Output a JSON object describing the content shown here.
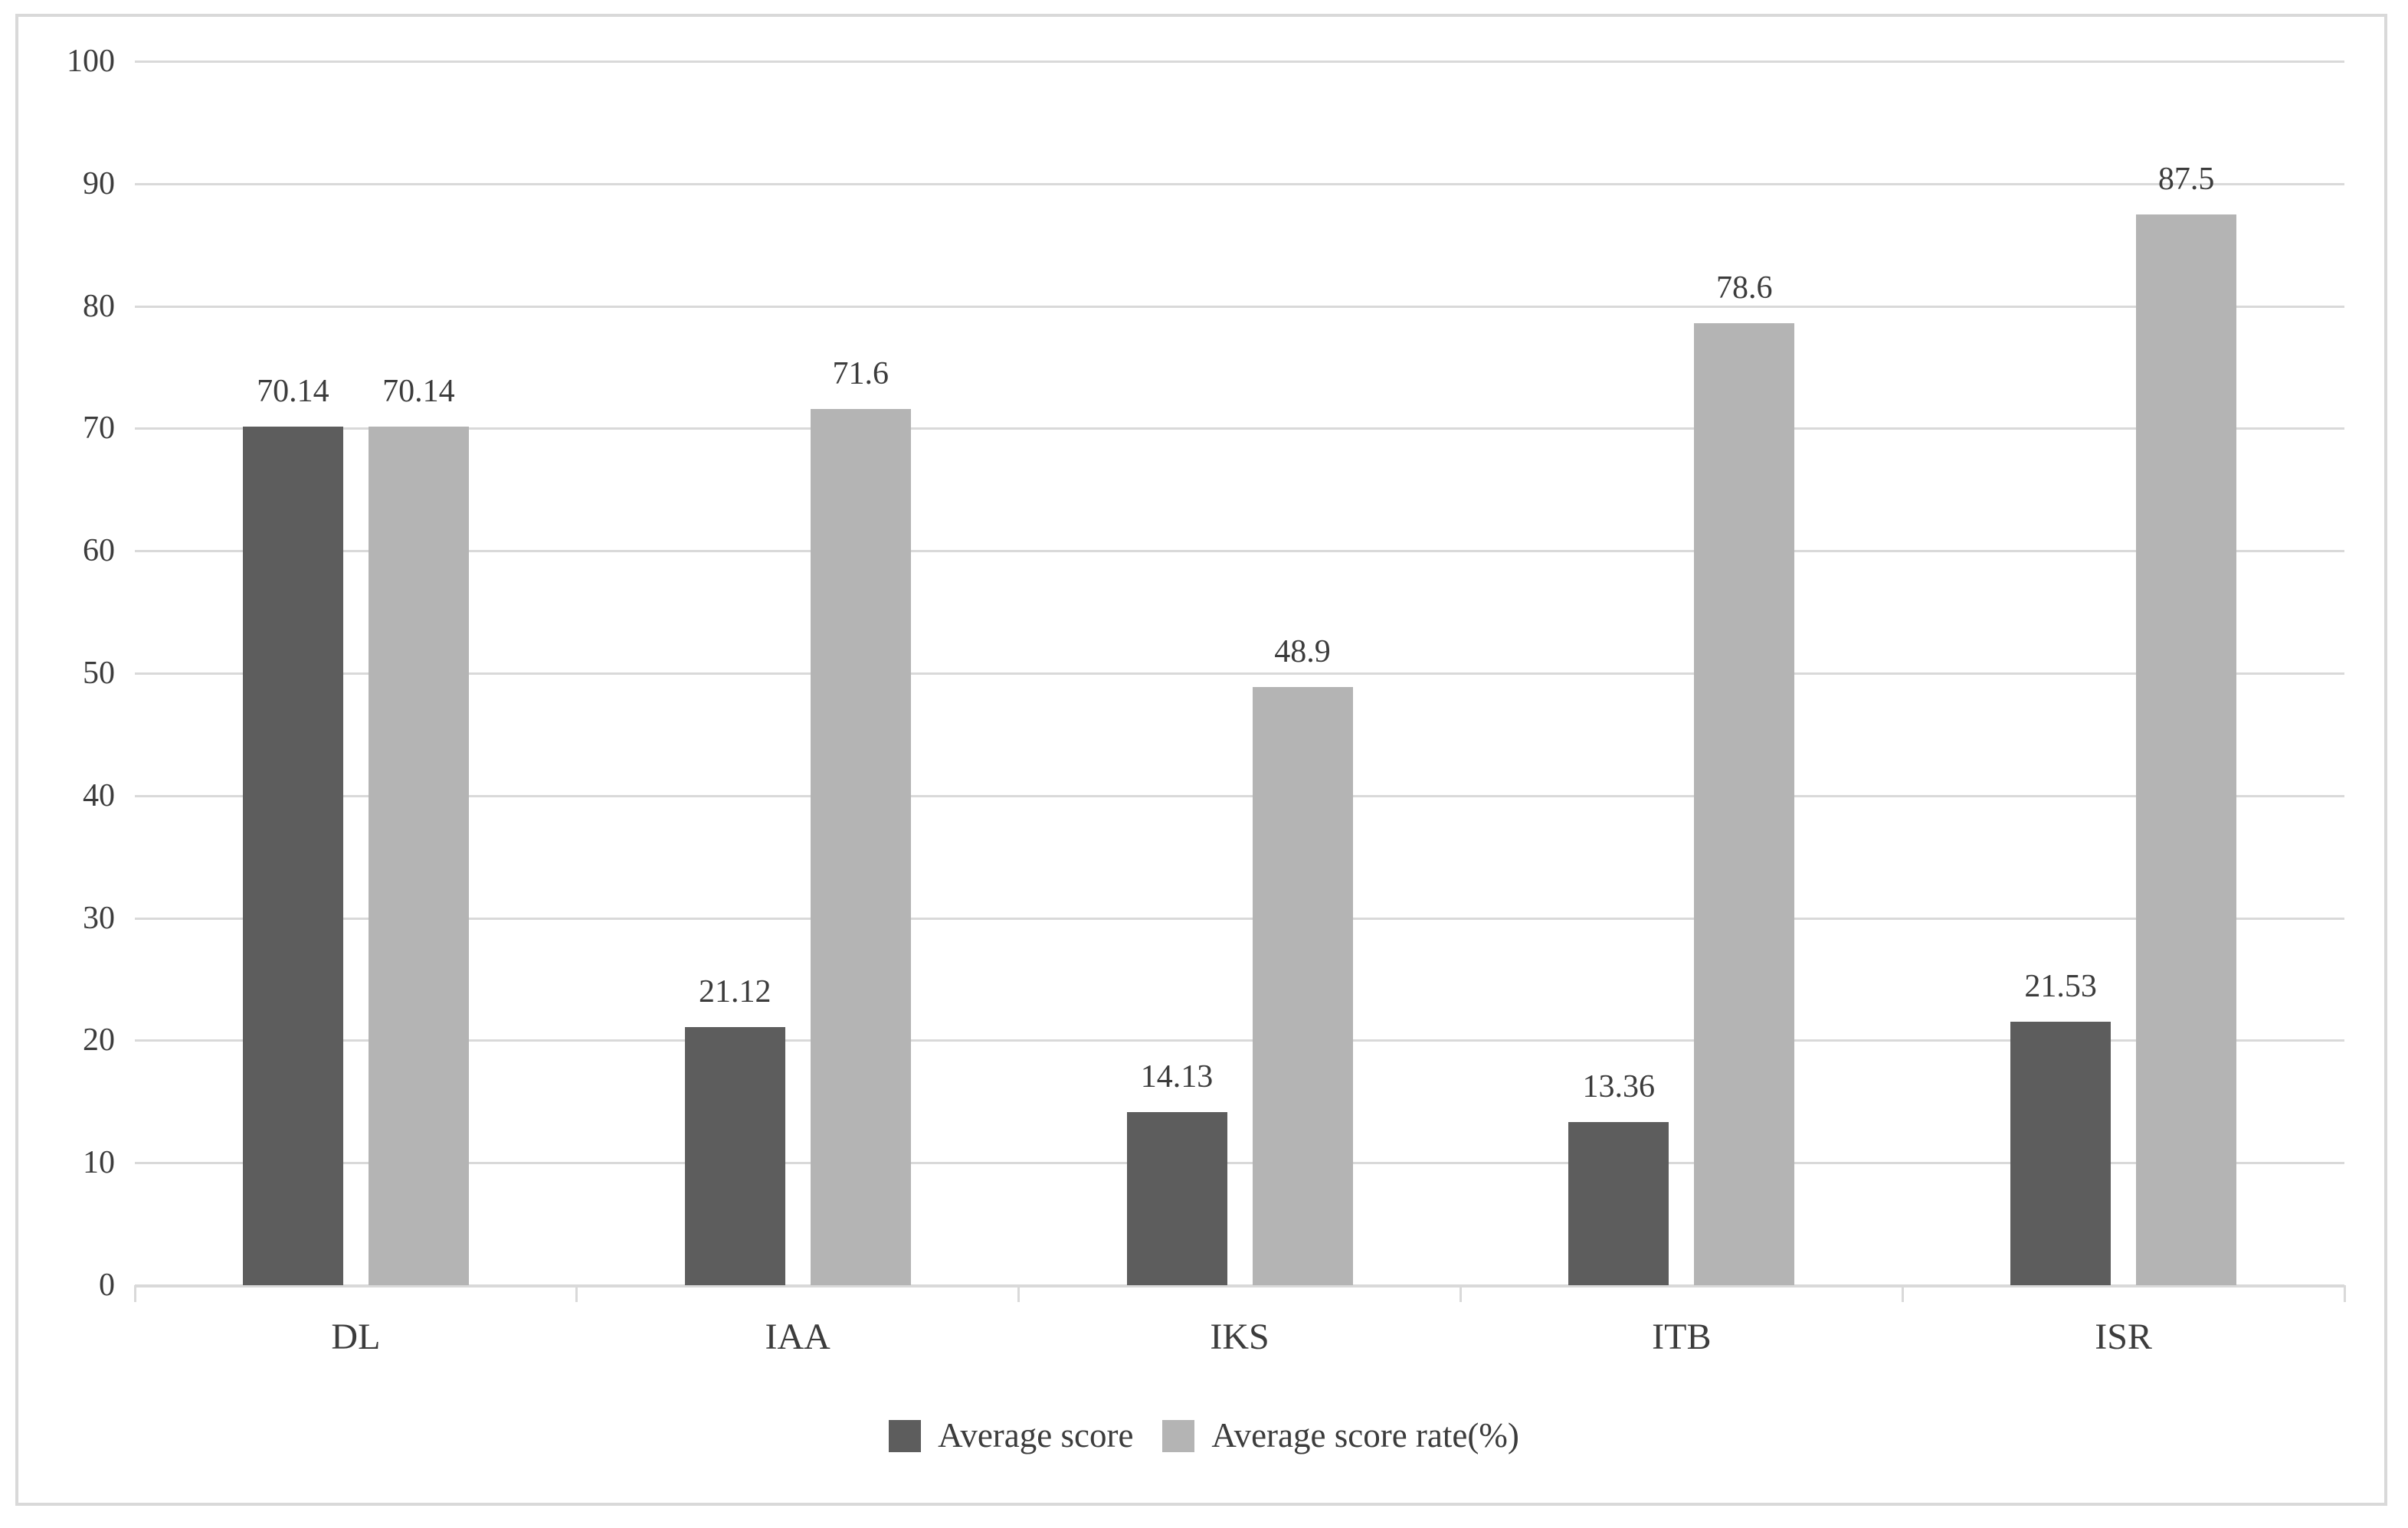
{
  "chart_data": {
    "type": "bar",
    "categories": [
      "DL",
      "IAA",
      "IKS",
      "ITB",
      "ISR"
    ],
    "series": [
      {
        "name": "Average score",
        "color": "#5d5d5d",
        "values": [
          70.14,
          21.12,
          14.13,
          13.36,
          21.53
        ],
        "labels": [
          "70.14",
          "21.12",
          "14.13",
          "13.36",
          "21.53"
        ]
      },
      {
        "name": "Average score rate(%)",
        "color": "#b4b4b4",
        "values": [
          70.14,
          71.6,
          48.9,
          78.6,
          87.5
        ],
        "labels": [
          "70.14",
          "71.6",
          "48.9",
          "78.6",
          "87.5"
        ]
      }
    ],
    "title": "",
    "xlabel": "",
    "ylabel": "",
    "ylim": [
      0,
      100
    ],
    "ytick_step": 10,
    "yticks": [
      "0",
      "10",
      "20",
      "30",
      "40",
      "50",
      "60",
      "70",
      "80",
      "90",
      "100"
    ],
    "grid": true,
    "legend_position": "bottom",
    "colors": {
      "gridline": "#d9d9d9",
      "axis_line": "#d9d9d9",
      "text": "#3c3c3c",
      "frame_border": "#d9d9d9",
      "background": "#ffffff"
    }
  }
}
